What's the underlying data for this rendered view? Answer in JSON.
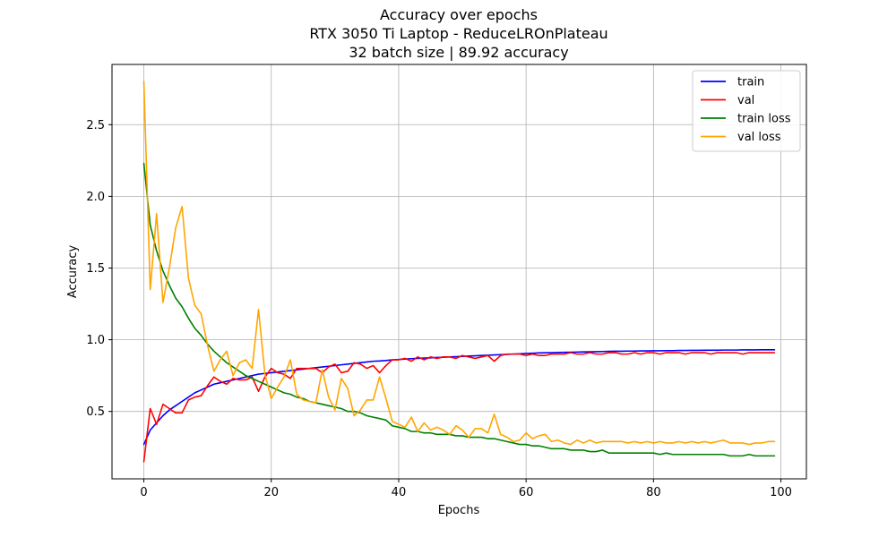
{
  "chart_data": {
    "type": "line",
    "title": "Accuracy over epochs",
    "subtitle_lines": [
      "RTX 3050 Ti Laptop - ReduceLROnPlateau",
      "32 batch size | 89.92 accuracy"
    ],
    "xlabel": "Epochs",
    "ylabel": "Accuracy",
    "xlim": [
      -5,
      104
    ],
    "ylim": [
      0.03,
      2.92
    ],
    "xticks": [
      0,
      20,
      40,
      60,
      80,
      100
    ],
    "yticks": [
      0.5,
      1.0,
      1.5,
      2.0,
      2.5
    ],
    "xtick_labels": [
      "0",
      "20",
      "40",
      "60",
      "80",
      "100"
    ],
    "ytick_labels": [
      "0.5",
      "1.0",
      "1.5",
      "2.0",
      "2.5"
    ],
    "grid": true,
    "legend_position": "top-right",
    "x": [
      0,
      1,
      2,
      3,
      4,
      5,
      6,
      7,
      8,
      9,
      10,
      11,
      12,
      13,
      14,
      15,
      16,
      17,
      18,
      19,
      20,
      21,
      22,
      23,
      24,
      25,
      26,
      27,
      28,
      29,
      30,
      31,
      32,
      33,
      34,
      35,
      36,
      37,
      38,
      39,
      40,
      41,
      42,
      43,
      44,
      45,
      46,
      47,
      48,
      49,
      50,
      51,
      52,
      53,
      54,
      55,
      56,
      57,
      58,
      59,
      60,
      61,
      62,
      63,
      64,
      65,
      66,
      67,
      68,
      69,
      70,
      71,
      72,
      73,
      74,
      75,
      76,
      77,
      78,
      79,
      80,
      81,
      82,
      83,
      84,
      85,
      86,
      87,
      88,
      89,
      90,
      91,
      92,
      93,
      94,
      95,
      96,
      97,
      98,
      99
    ],
    "series": [
      {
        "name": "train",
        "color": "#0000ff",
        "values": [
          0.27,
          0.37,
          0.42,
          0.47,
          0.51,
          0.54,
          0.57,
          0.6,
          0.63,
          0.65,
          0.67,
          0.69,
          0.7,
          0.71,
          0.72,
          0.73,
          0.74,
          0.75,
          0.76,
          0.765,
          0.77,
          0.775,
          0.78,
          0.785,
          0.79,
          0.795,
          0.8,
          0.805,
          0.81,
          0.815,
          0.82,
          0.825,
          0.83,
          0.835,
          0.84,
          0.845,
          0.85,
          0.852,
          0.855,
          0.86,
          0.862,
          0.865,
          0.868,
          0.87,
          0.872,
          0.874,
          0.876,
          0.878,
          0.88,
          0.882,
          0.884,
          0.886,
          0.888,
          0.89,
          0.892,
          0.894,
          0.896,
          0.898,
          0.9,
          0.902,
          0.904,
          0.906,
          0.908,
          0.909,
          0.91,
          0.911,
          0.912,
          0.913,
          0.914,
          0.915,
          0.916,
          0.917,
          0.918,
          0.919,
          0.92,
          0.92,
          0.921,
          0.921,
          0.922,
          0.922,
          0.923,
          0.923,
          0.924,
          0.924,
          0.925,
          0.925,
          0.926,
          0.926,
          0.927,
          0.927,
          0.927,
          0.928,
          0.928,
          0.928,
          0.929,
          0.929,
          0.929,
          0.93,
          0.93,
          0.93
        ]
      },
      {
        "name": "val",
        "color": "#ff0000",
        "values": [
          0.15,
          0.52,
          0.41,
          0.55,
          0.52,
          0.49,
          0.49,
          0.58,
          0.6,
          0.61,
          0.68,
          0.74,
          0.71,
          0.69,
          0.73,
          0.72,
          0.72,
          0.74,
          0.64,
          0.74,
          0.8,
          0.77,
          0.76,
          0.73,
          0.8,
          0.8,
          0.8,
          0.8,
          0.77,
          0.81,
          0.83,
          0.77,
          0.78,
          0.84,
          0.83,
          0.8,
          0.82,
          0.77,
          0.82,
          0.86,
          0.86,
          0.87,
          0.85,
          0.88,
          0.86,
          0.88,
          0.87,
          0.88,
          0.88,
          0.87,
          0.89,
          0.88,
          0.87,
          0.88,
          0.89,
          0.85,
          0.89,
          0.9,
          0.9,
          0.9,
          0.89,
          0.9,
          0.89,
          0.89,
          0.9,
          0.9,
          0.9,
          0.91,
          0.9,
          0.9,
          0.91,
          0.9,
          0.9,
          0.91,
          0.91,
          0.9,
          0.9,
          0.91,
          0.9,
          0.91,
          0.91,
          0.9,
          0.91,
          0.91,
          0.91,
          0.9,
          0.91,
          0.91,
          0.91,
          0.9,
          0.91,
          0.91,
          0.91,
          0.91,
          0.9,
          0.91,
          0.91,
          0.91,
          0.91,
          0.91
        ]
      },
      {
        "name": "train loss",
        "color": "#008000",
        "values": [
          2.23,
          1.8,
          1.62,
          1.48,
          1.38,
          1.29,
          1.23,
          1.15,
          1.08,
          1.03,
          0.97,
          0.92,
          0.88,
          0.84,
          0.81,
          0.78,
          0.75,
          0.73,
          0.71,
          0.69,
          0.67,
          0.65,
          0.63,
          0.62,
          0.6,
          0.59,
          0.57,
          0.56,
          0.55,
          0.54,
          0.53,
          0.52,
          0.5,
          0.5,
          0.49,
          0.47,
          0.46,
          0.45,
          0.44,
          0.4,
          0.39,
          0.38,
          0.36,
          0.36,
          0.35,
          0.35,
          0.34,
          0.34,
          0.34,
          0.33,
          0.33,
          0.32,
          0.32,
          0.32,
          0.31,
          0.31,
          0.3,
          0.29,
          0.28,
          0.27,
          0.27,
          0.26,
          0.26,
          0.25,
          0.24,
          0.24,
          0.24,
          0.23,
          0.23,
          0.23,
          0.22,
          0.22,
          0.23,
          0.21,
          0.21,
          0.21,
          0.21,
          0.21,
          0.21,
          0.21,
          0.21,
          0.2,
          0.21,
          0.2,
          0.2,
          0.2,
          0.2,
          0.2,
          0.2,
          0.2,
          0.2,
          0.2,
          0.19,
          0.19,
          0.19,
          0.2,
          0.19,
          0.19,
          0.19,
          0.19
        ]
      },
      {
        "name": "val loss",
        "color": "#ffa500",
        "values": [
          2.8,
          1.35,
          1.88,
          1.26,
          1.5,
          1.78,
          1.93,
          1.43,
          1.24,
          1.18,
          0.96,
          0.78,
          0.86,
          0.92,
          0.75,
          0.84,
          0.86,
          0.8,
          1.21,
          0.76,
          0.59,
          0.67,
          0.74,
          0.86,
          0.62,
          0.58,
          0.57,
          0.56,
          0.79,
          0.6,
          0.51,
          0.73,
          0.66,
          0.47,
          0.51,
          0.58,
          0.58,
          0.74,
          0.59,
          0.43,
          0.41,
          0.39,
          0.46,
          0.36,
          0.42,
          0.37,
          0.39,
          0.37,
          0.34,
          0.4,
          0.37,
          0.32,
          0.38,
          0.38,
          0.35,
          0.48,
          0.34,
          0.32,
          0.29,
          0.3,
          0.35,
          0.31,
          0.33,
          0.34,
          0.29,
          0.3,
          0.28,
          0.27,
          0.3,
          0.28,
          0.3,
          0.28,
          0.29,
          0.29,
          0.29,
          0.29,
          0.28,
          0.29,
          0.28,
          0.29,
          0.28,
          0.29,
          0.28,
          0.28,
          0.29,
          0.28,
          0.29,
          0.28,
          0.29,
          0.28,
          0.29,
          0.3,
          0.28,
          0.28,
          0.28,
          0.27,
          0.28,
          0.28,
          0.29,
          0.29
        ]
      }
    ]
  }
}
